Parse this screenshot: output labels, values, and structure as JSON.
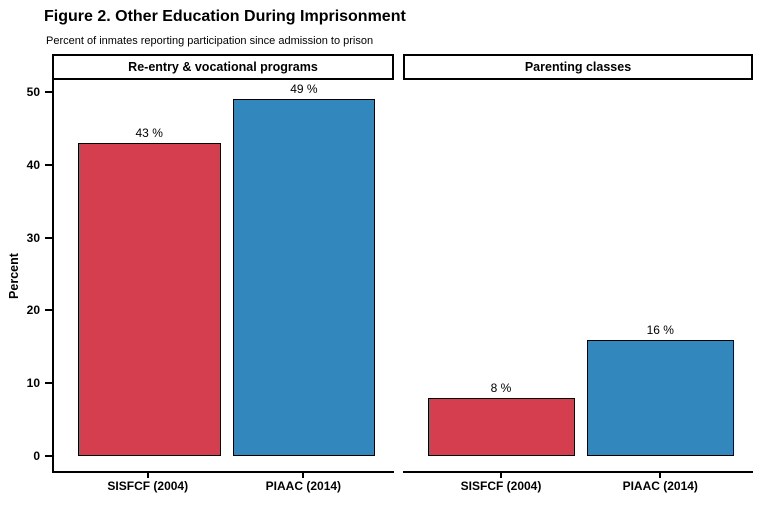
{
  "chart_data": {
    "type": "bar",
    "title": "Figure 2. Other Education During Imprisonment",
    "subtitle": "Percent of inmates reporting participation since admission to prison",
    "xlabel": "",
    "ylabel": "Percent",
    "ylim": [
      0,
      50
    ],
    "yticks": [
      0,
      10,
      20,
      30,
      40,
      50
    ],
    "grid": false,
    "legend_position": "none",
    "facets": [
      {
        "label": "Re-entry & vocational programs",
        "categories": [
          "SISFCF (2004)",
          "PIAAC (2014)"
        ],
        "values": [
          43,
          49
        ],
        "value_labels": [
          "43 %",
          "49 %"
        ]
      },
      {
        "label": "Parenting classes",
        "categories": [
          "SISFCF (2004)",
          "PIAAC (2014)"
        ],
        "values": [
          8,
          16
        ],
        "value_labels": [
          "8 %",
          "16 %"
        ]
      }
    ],
    "series_colors": [
      {
        "name": "SISFCF (2004)",
        "fill": "#D53E4F"
      },
      {
        "name": "PIAAC (2014)",
        "fill": "#3288BD"
      }
    ],
    "bar_outline": "#000000",
    "axis_color": "#000000"
  }
}
